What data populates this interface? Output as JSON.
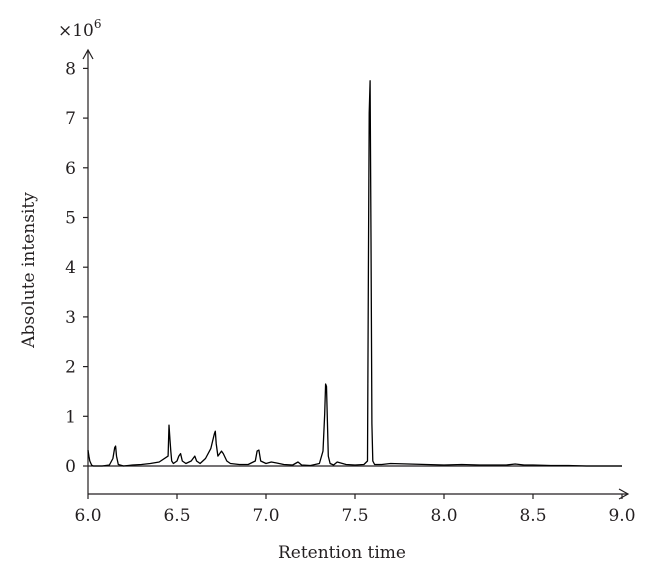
{
  "chart_data": {
    "type": "line",
    "xlabel": "Retention time",
    "ylabel": "Absolute intensity",
    "y_multiplier_label": "×10",
    "y_multiplier_exponent": "6",
    "xlim": [
      6.0,
      9.0
    ],
    "ylim": [
      -0.6,
      8.5
    ],
    "x_ticks": [
      "6.0",
      "6.5",
      "7.0",
      "7.5",
      "8.0",
      "8.5",
      "9.0"
    ],
    "y_ticks": [
      "0",
      "1",
      "2",
      "3",
      "4",
      "5",
      "6",
      "7",
      "8"
    ],
    "grid": false,
    "series": [
      {
        "color": "#000000",
        "x": [
          6.0,
          6.005,
          6.01,
          6.02,
          6.03,
          6.05,
          6.08,
          6.12,
          6.14,
          6.15,
          6.155,
          6.16,
          6.17,
          6.2,
          6.25,
          6.3,
          6.35,
          6.4,
          6.45,
          6.455,
          6.46,
          6.465,
          6.47,
          6.48,
          6.5,
          6.51,
          6.52,
          6.53,
          6.55,
          6.58,
          6.6,
          6.61,
          6.63,
          6.66,
          6.69,
          6.7,
          6.71,
          6.715,
          6.72,
          6.73,
          6.75,
          6.76,
          6.78,
          6.8,
          6.85,
          6.9,
          6.94,
          6.95,
          6.96,
          6.97,
          7.0,
          7.03,
          7.06,
          7.1,
          7.15,
          7.18,
          7.2,
          7.25,
          7.3,
          7.32,
          7.33,
          7.335,
          7.34,
          7.345,
          7.35,
          7.36,
          7.38,
          7.4,
          7.45,
          7.5,
          7.55,
          7.57,
          7.575,
          7.58,
          7.585,
          7.59,
          7.595,
          7.6,
          7.61,
          7.65,
          7.7,
          7.8,
          7.9,
          8.0,
          8.1,
          8.2,
          8.3,
          8.35,
          8.4,
          8.45,
          8.5,
          8.6,
          8.7,
          8.8,
          8.9,
          9.0
        ],
        "y": [
          0.32,
          0.2,
          0.1,
          0.02,
          0.0,
          0.0,
          0.0,
          0.02,
          0.15,
          0.37,
          0.4,
          0.2,
          0.03,
          0.0,
          0.02,
          0.03,
          0.05,
          0.08,
          0.2,
          0.82,
          0.55,
          0.3,
          0.1,
          0.05,
          0.1,
          0.2,
          0.25,
          0.1,
          0.05,
          0.1,
          0.2,
          0.1,
          0.05,
          0.15,
          0.35,
          0.5,
          0.65,
          0.7,
          0.45,
          0.2,
          0.3,
          0.25,
          0.1,
          0.05,
          0.03,
          0.03,
          0.1,
          0.3,
          0.32,
          0.1,
          0.05,
          0.08,
          0.06,
          0.03,
          0.02,
          0.08,
          0.02,
          0.01,
          0.05,
          0.3,
          1.05,
          1.65,
          1.6,
          0.9,
          0.2,
          0.05,
          0.02,
          0.08,
          0.03,
          0.02,
          0.03,
          0.1,
          3.95,
          7.1,
          7.75,
          4.6,
          0.85,
          0.1,
          0.03,
          0.03,
          0.05,
          0.04,
          0.03,
          0.02,
          0.03,
          0.02,
          0.02,
          0.02,
          0.04,
          0.02,
          0.02,
          0.01,
          0.01,
          0.0,
          0.0,
          0.0
        ]
      }
    ]
  }
}
